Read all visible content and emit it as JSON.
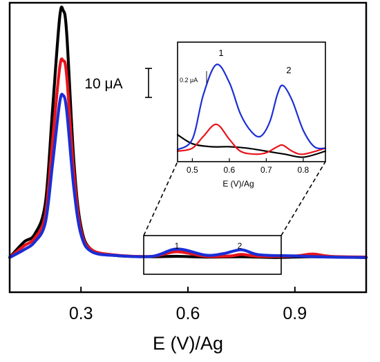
{
  "chart_data": {
    "type": "line",
    "xlabel": "E (V)/Ag",
    "xlim": [
      0.1,
      1.1
    ],
    "x_ticks": [
      0.3,
      0.6,
      0.9
    ],
    "x_tick_labels": [
      "0.3",
      "0.6",
      "0.9"
    ],
    "ylim": [
      -9,
      66
    ],
    "y_ticks_shown": false,
    "grid": false,
    "legend": "none",
    "scale_bar": {
      "label": "10 μA",
      "value": 10
    },
    "series": [
      {
        "color": "#000000",
        "x": [
          0.1,
          0.14,
          0.17,
          0.2,
          0.22,
          0.24,
          0.25,
          0.26,
          0.28,
          0.3,
          0.33,
          0.4,
          0.5,
          0.57,
          0.65,
          0.75,
          0.85,
          0.95,
          1.1
        ],
        "y": [
          0.0,
          4.0,
          6.0,
          14.0,
          38.0,
          62.0,
          64.0,
          58.0,
          25.0,
          8.0,
          2.0,
          0.5,
          0.2,
          0.3,
          0.1,
          0.2,
          0.0,
          0.2,
          0.0
        ]
      },
      {
        "color": "#e8141b",
        "x": [
          0.1,
          0.14,
          0.17,
          0.2,
          0.22,
          0.24,
          0.25,
          0.26,
          0.28,
          0.3,
          0.33,
          0.4,
          0.5,
          0.57,
          0.65,
          0.72,
          0.75,
          0.8,
          0.9,
          0.95,
          1.0,
          1.1
        ],
        "y": [
          0.0,
          3.0,
          5.0,
          11.0,
          30.0,
          49.0,
          51.0,
          47.0,
          22.0,
          7.0,
          2.0,
          0.6,
          0.3,
          1.5,
          0.3,
          0.4,
          0.8,
          0.3,
          0.4,
          0.9,
          0.3,
          0.1
        ]
      },
      {
        "color": "#1a2ed6",
        "x": [
          0.1,
          0.14,
          0.17,
          0.2,
          0.22,
          0.24,
          0.25,
          0.26,
          0.28,
          0.3,
          0.33,
          0.4,
          0.5,
          0.57,
          0.65,
          0.7,
          0.75,
          0.8,
          0.9,
          1.0,
          1.1
        ],
        "y": [
          0.0,
          2.0,
          4.0,
          9.0,
          24.0,
          40.0,
          42.0,
          38.0,
          18.0,
          6.0,
          1.5,
          0.5,
          0.3,
          2.2,
          0.6,
          1.0,
          2.0,
          0.7,
          0.4,
          0.1,
          0.0
        ]
      }
    ],
    "zoom_box": {
      "x_range": [
        0.48,
        0.87
      ],
      "labels": [
        "1",
        "2"
      ],
      "label_x": [
        0.57,
        0.76
      ]
    },
    "inset": {
      "xlabel": "E (V)/Ag",
      "xlim": [
        0.46,
        0.86
      ],
      "x_ticks": [
        0.5,
        0.6,
        0.7,
        0.8
      ],
      "x_tick_labels": [
        "0.5",
        "0.6",
        "0.7",
        "0.8"
      ],
      "ylim": [
        -0.05,
        0.75
      ],
      "scale_bar": {
        "label": "0.2 μA",
        "value": 0.2
      },
      "peak_labels": [
        "1",
        "2"
      ],
      "peak_x": [
        0.565,
        0.745
      ],
      "series": [
        {
          "color": "#000000",
          "x": [
            0.46,
            0.5,
            0.55,
            0.6,
            0.65,
            0.7,
            0.75,
            0.8,
            0.86
          ],
          "y": [
            0.13,
            0.07,
            0.05,
            0.05,
            0.04,
            0.02,
            0.0,
            -0.02,
            0.02
          ]
        },
        {
          "color": "#e8141b",
          "x": [
            0.46,
            0.5,
            0.53,
            0.565,
            0.6,
            0.63,
            0.67,
            0.7,
            0.73,
            0.745,
            0.77,
            0.8,
            0.86
          ],
          "y": [
            0.02,
            0.04,
            0.12,
            0.2,
            0.1,
            0.02,
            0.0,
            0.01,
            0.05,
            0.06,
            0.02,
            0.0,
            0.04
          ]
        },
        {
          "color": "#1a2ed6",
          "x": [
            0.46,
            0.5,
            0.53,
            0.565,
            0.6,
            0.63,
            0.66,
            0.685,
            0.71,
            0.73,
            0.745,
            0.77,
            0.8,
            0.83,
            0.86
          ],
          "y": [
            0.03,
            0.1,
            0.4,
            0.6,
            0.48,
            0.27,
            0.15,
            0.12,
            0.22,
            0.4,
            0.46,
            0.36,
            0.16,
            0.05,
            0.04
          ]
        }
      ]
    }
  }
}
